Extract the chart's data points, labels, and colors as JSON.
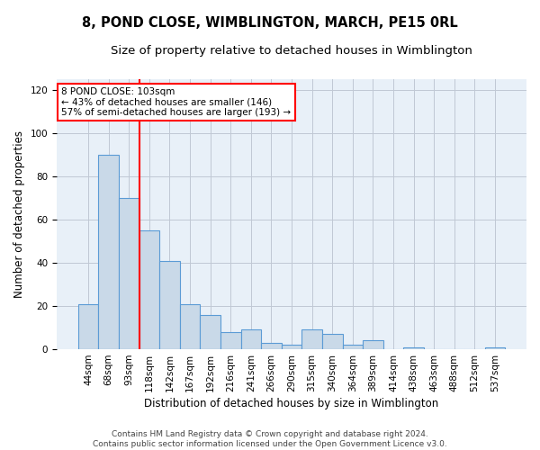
{
  "title": "8, POND CLOSE, WIMBLINGTON, MARCH, PE15 0RL",
  "subtitle": "Size of property relative to detached houses in Wimblington",
  "xlabel": "Distribution of detached houses by size in Wimblington",
  "ylabel": "Number of detached properties",
  "bar_labels": [
    "44sqm",
    "68sqm",
    "93sqm",
    "118sqm",
    "142sqm",
    "167sqm",
    "192sqm",
    "216sqm",
    "241sqm",
    "266sqm",
    "290sqm",
    "315sqm",
    "340sqm",
    "364sqm",
    "389sqm",
    "414sqm",
    "438sqm",
    "463sqm",
    "488sqm",
    "512sqm",
    "537sqm"
  ],
  "bar_values": [
    21,
    90,
    70,
    55,
    41,
    21,
    16,
    8,
    9,
    3,
    2,
    9,
    7,
    2,
    4,
    0,
    1,
    0,
    0,
    0,
    1
  ],
  "bar_color": "#c9d9e8",
  "bar_edge_color": "#5b9bd5",
  "annotation_text": "8 POND CLOSE: 103sqm\n← 43% of detached houses are smaller (146)\n57% of semi-detached houses are larger (193) →",
  "annotation_box_color": "#ffffff",
  "annotation_box_edge_color": "#ff0000",
  "red_line_x": 2.5,
  "ylim": [
    0,
    125
  ],
  "yticks": [
    0,
    20,
    40,
    60,
    80,
    100,
    120
  ],
  "plot_bg_color": "#e8f0f8",
  "background_color": "#ffffff",
  "grid_color": "#c0c8d4",
  "footer": "Contains HM Land Registry data © Crown copyright and database right 2024.\nContains public sector information licensed under the Open Government Licence v3.0.",
  "title_fontsize": 10.5,
  "subtitle_fontsize": 9.5,
  "ylabel_fontsize": 8.5,
  "xlabel_fontsize": 8.5,
  "tick_fontsize": 7.5,
  "footer_fontsize": 6.5,
  "annot_fontsize": 7.5
}
